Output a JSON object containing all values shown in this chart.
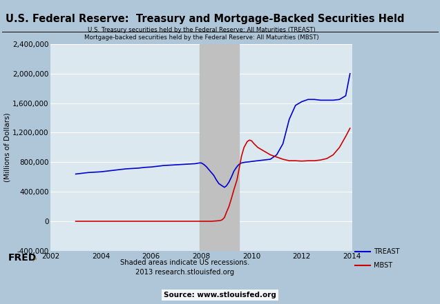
{
  "title": "U.S. Federal Reserve:  Treasury and Mortgage-Backed Securities Held",
  "subtitle_line1": "U.S. Treasury securities held by the Federal Reserve: All Maturities (TREAST)",
  "subtitle_line2": "Mortgage-backed securities held by the Federal Reserve: All Maturities (MBST)",
  "ylabel": "(Millions of Dollars)",
  "xlabel_note1": "Shaded areas indicate US recessions.",
  "xlabel_note2": "2013 research.stlouisfed.org",
  "source_note": "Source: www.stlouisfed.org",
  "fred_label": "FRED",
  "outer_bg": "#afc6d8",
  "inner_bg": "#c8dbe8",
  "plot_bg": "#dce8f0",
  "recession_color": "#c0c0c0",
  "recession_alpha": 1.0,
  "recession_start": 2007.92,
  "recession_end": 2009.5,
  "ylim": [
    -400000,
    2400000
  ],
  "xlim": [
    2002,
    2014
  ],
  "yticks": [
    -400000,
    0,
    400000,
    800000,
    1200000,
    1600000,
    2000000,
    2400000
  ],
  "xticks": [
    2002,
    2004,
    2006,
    2008,
    2010,
    2012,
    2014
  ],
  "treast_color": "#0000cc",
  "mbst_color": "#cc0000",
  "treast_data": {
    "x": [
      2003.0,
      2003.25,
      2003.5,
      2003.75,
      2004.0,
      2004.25,
      2004.5,
      2004.75,
      2005.0,
      2005.25,
      2005.5,
      2005.75,
      2006.0,
      2006.25,
      2006.5,
      2006.75,
      2007.0,
      2007.25,
      2007.5,
      2007.75,
      2007.92,
      2008.0,
      2008.1,
      2008.2,
      2008.3,
      2008.5,
      2008.6,
      2008.7,
      2008.83,
      2008.92,
      2009.0,
      2009.1,
      2009.2,
      2009.3,
      2009.42,
      2009.5,
      2009.6,
      2009.75,
      2009.9,
      2010.0,
      2010.25,
      2010.5,
      2010.75,
      2011.0,
      2011.25,
      2011.5,
      2011.75,
      2012.0,
      2012.25,
      2012.5,
      2012.75,
      2013.0,
      2013.25,
      2013.5,
      2013.75,
      2013.92
    ],
    "y": [
      640000,
      650000,
      660000,
      665000,
      670000,
      680000,
      690000,
      700000,
      710000,
      715000,
      720000,
      730000,
      735000,
      745000,
      755000,
      760000,
      765000,
      770000,
      775000,
      780000,
      790000,
      790000,
      770000,
      740000,
      700000,
      620000,
      560000,
      510000,
      480000,
      460000,
      480000,
      530000,
      600000,
      680000,
      740000,
      770000,
      790000,
      800000,
      805000,
      810000,
      820000,
      830000,
      840000,
      900000,
      1050000,
      1380000,
      1570000,
      1620000,
      1650000,
      1650000,
      1640000,
      1640000,
      1640000,
      1650000,
      1700000,
      2000000
    ]
  },
  "mbst_data": {
    "x": [
      2003.0,
      2003.5,
      2004.0,
      2004.5,
      2005.0,
      2005.5,
      2006.0,
      2006.5,
      2007.0,
      2007.5,
      2007.92,
      2008.0,
      2008.2,
      2008.4,
      2008.6,
      2008.75,
      2008.83,
      2008.92,
      2009.0,
      2009.1,
      2009.2,
      2009.3,
      2009.42,
      2009.5,
      2009.6,
      2009.7,
      2009.83,
      2009.92,
      2010.0,
      2010.1,
      2010.25,
      2010.5,
      2010.75,
      2011.0,
      2011.25,
      2011.5,
      2011.75,
      2012.0,
      2012.25,
      2012.5,
      2012.75,
      2013.0,
      2013.25,
      2013.5,
      2013.75,
      2013.92
    ],
    "y": [
      0,
      0,
      0,
      0,
      0,
      0,
      0,
      0,
      0,
      0,
      0,
      0,
      0,
      0,
      5000,
      10000,
      20000,
      50000,
      120000,
      200000,
      310000,
      430000,
      560000,
      700000,
      880000,
      1000000,
      1080000,
      1100000,
      1090000,
      1050000,
      1000000,
      950000,
      900000,
      870000,
      840000,
      820000,
      820000,
      815000,
      820000,
      820000,
      830000,
      850000,
      900000,
      1000000,
      1150000,
      1260000
    ]
  }
}
